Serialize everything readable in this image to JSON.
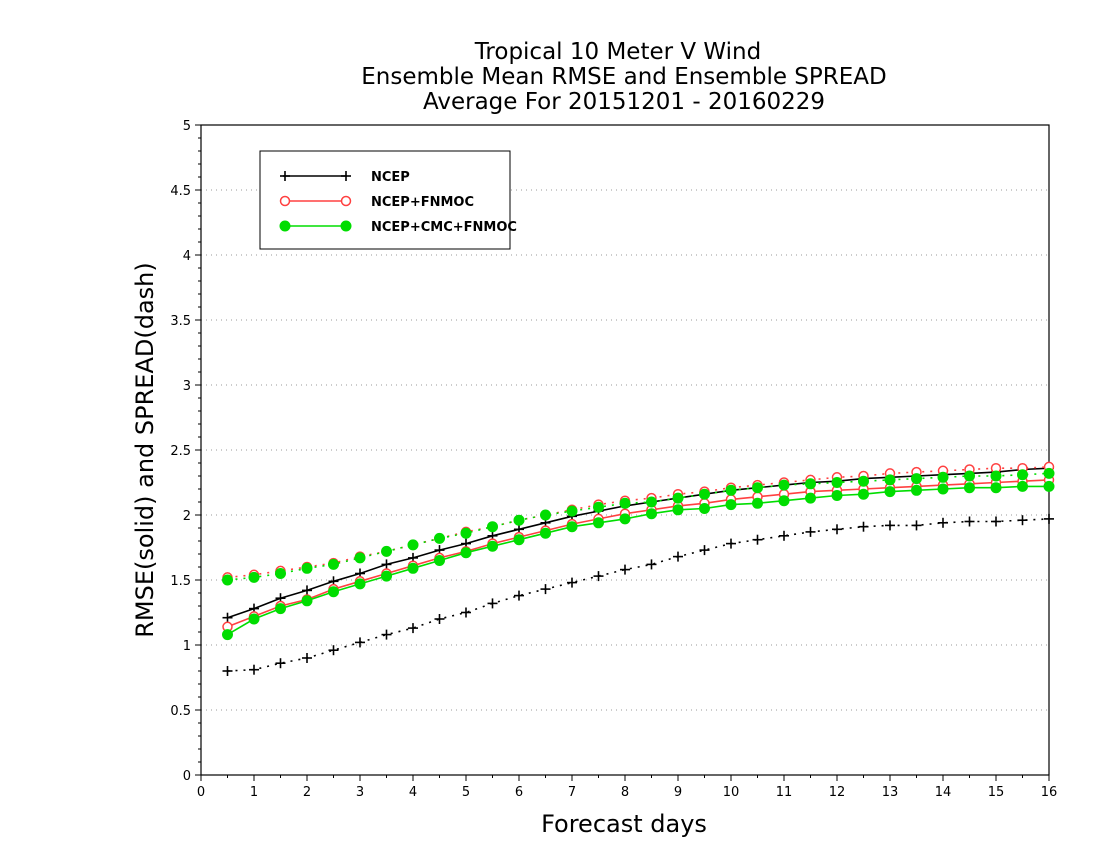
{
  "chart_data": {
    "type": "line",
    "title": "Tropical 10 Meter V Wind",
    "subtitle": "Ensemble Mean RMSE and Ensemble SPREAD",
    "period": "Average For 20151201 - 20160229",
    "xlabel": "Forecast days",
    "ylabel": "RMSE(solid) and SPREAD(dash)",
    "xlim": [
      0,
      16
    ],
    "ylim": [
      0,
      5
    ],
    "xticks": [
      "0",
      "1",
      "2",
      "3",
      "4",
      "5",
      "6",
      "7",
      "8",
      "9",
      "10",
      "11",
      "12",
      "13",
      "14",
      "15",
      "16"
    ],
    "yticks": [
      "0",
      "0.5",
      "1",
      "1.5",
      "2",
      "2.5",
      "3",
      "3.5",
      "4",
      "4.5",
      "5"
    ],
    "grid": "horizontal dotted",
    "legend_position": "top-left",
    "x": [
      0.5,
      1,
      1.5,
      2,
      2.5,
      3,
      3.5,
      4,
      4.5,
      5,
      5.5,
      6,
      6.5,
      7,
      7.5,
      8,
      8.5,
      9,
      9.5,
      10,
      10.5,
      11,
      11.5,
      12,
      12.5,
      13,
      13.5,
      14,
      14.5,
      15,
      15.5,
      16
    ],
    "series": [
      {
        "name": "NCEP",
        "color": "#000000",
        "marker": "plus",
        "rmse": [
          1.21,
          1.28,
          1.36,
          1.42,
          1.49,
          1.55,
          1.62,
          1.67,
          1.73,
          1.78,
          1.84,
          1.89,
          1.94,
          1.99,
          2.03,
          2.07,
          2.1,
          2.13,
          2.16,
          2.19,
          2.21,
          2.23,
          2.25,
          2.26,
          2.28,
          2.29,
          2.3,
          2.31,
          2.32,
          2.33,
          2.35,
          2.36
        ],
        "spread": [
          0.8,
          0.81,
          0.86,
          0.9,
          0.96,
          1.02,
          1.08,
          1.13,
          1.2,
          1.25,
          1.32,
          1.38,
          1.43,
          1.48,
          1.53,
          1.58,
          1.62,
          1.68,
          1.73,
          1.78,
          1.81,
          1.84,
          1.87,
          1.89,
          1.91,
          1.92,
          1.92,
          1.94,
          1.95,
          1.95,
          1.96,
          1.97
        ]
      },
      {
        "name": "NCEP+FNMOC",
        "color": "#ff4040",
        "marker": "open-circle",
        "rmse": [
          1.14,
          1.22,
          1.3,
          1.35,
          1.43,
          1.49,
          1.55,
          1.61,
          1.67,
          1.72,
          1.78,
          1.83,
          1.88,
          1.93,
          1.97,
          2.01,
          2.04,
          2.07,
          2.09,
          2.12,
          2.14,
          2.16,
          2.18,
          2.19,
          2.2,
          2.21,
          2.22,
          2.23,
          2.24,
          2.25,
          2.26,
          2.27
        ],
        "spread": [
          1.52,
          1.54,
          1.57,
          1.6,
          1.63,
          1.68,
          1.72,
          1.77,
          1.82,
          1.87,
          1.91,
          1.96,
          2.0,
          2.04,
          2.08,
          2.11,
          2.13,
          2.16,
          2.18,
          2.21,
          2.23,
          2.25,
          2.27,
          2.29,
          2.3,
          2.32,
          2.33,
          2.34,
          2.35,
          2.36,
          2.36,
          2.37
        ]
      },
      {
        "name": "NCEP+CMC+FNMOC",
        "color": "#00dd00",
        "marker": "filled-circle",
        "rmse": [
          1.08,
          1.2,
          1.28,
          1.34,
          1.41,
          1.47,
          1.53,
          1.59,
          1.65,
          1.71,
          1.76,
          1.81,
          1.86,
          1.91,
          1.94,
          1.97,
          2.01,
          2.04,
          2.05,
          2.08,
          2.09,
          2.11,
          2.13,
          2.15,
          2.16,
          2.18,
          2.19,
          2.2,
          2.21,
          2.21,
          2.22,
          2.22
        ],
        "spread": [
          1.5,
          1.52,
          1.55,
          1.59,
          1.62,
          1.67,
          1.72,
          1.77,
          1.82,
          1.86,
          1.91,
          1.96,
          2.0,
          2.03,
          2.06,
          2.09,
          2.1,
          2.13,
          2.16,
          2.19,
          2.21,
          2.23,
          2.24,
          2.25,
          2.26,
          2.27,
          2.28,
          2.29,
          2.3,
          2.3,
          2.31,
          2.32
        ]
      }
    ]
  }
}
